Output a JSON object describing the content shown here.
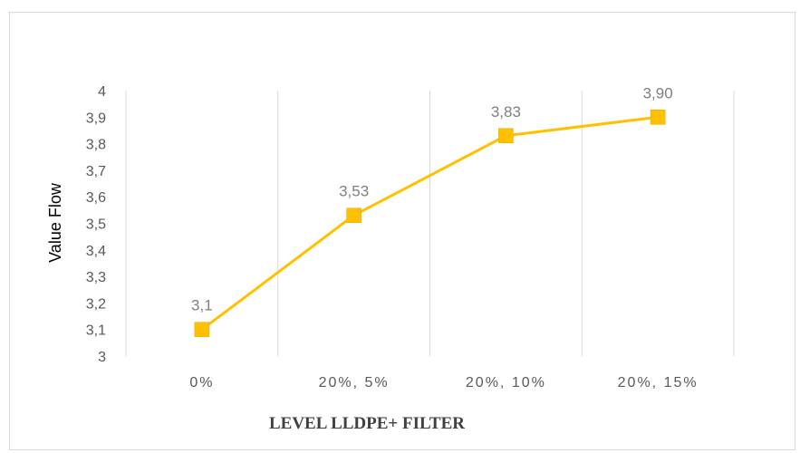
{
  "chart_data": {
    "type": "line",
    "categories": [
      "0%",
      "20%, 5%",
      "20%, 10%",
      "20%, 15%"
    ],
    "series": [
      {
        "values": [
          3.1,
          3.53,
          3.83,
          3.9
        ],
        "data_labels": [
          "3,1",
          "3,53",
          "3,83",
          "3,90"
        ],
        "color": "#ffc000",
        "marker": "square"
      }
    ],
    "title": "",
    "xlabel": "LEVEL LLDPE+ FILTER",
    "ylabel": "Value Flow",
    "ylim": [
      3,
      4
    ],
    "yticks": [
      3,
      3.1,
      3.2,
      3.3,
      3.4,
      3.5,
      3.6,
      3.7,
      3.8,
      3.9,
      4
    ],
    "ytick_labels": [
      "3",
      "3,1",
      "3,2",
      "3,3",
      "3,4",
      "3,5",
      "3,6",
      "3,7",
      "3,8",
      "3,9",
      "4"
    ],
    "grid": "vertical",
    "grid_color": "#d9d9d9",
    "legend": "none"
  }
}
